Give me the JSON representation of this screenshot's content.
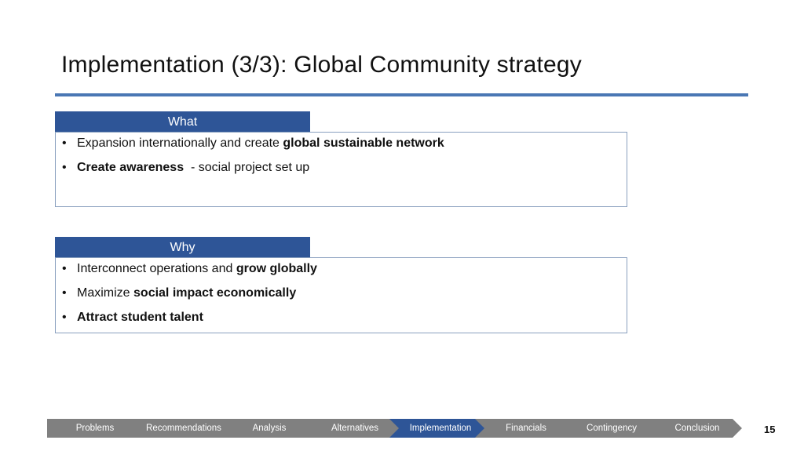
{
  "slide": {
    "title": "Implementation (3/3): Global Community strategy",
    "page_number": "15"
  },
  "sections": [
    {
      "header": "What",
      "bullets": [
        [
          {
            "t": "Expansion internationally and create ",
            "b": false
          },
          {
            "t": "global sustainable network",
            "b": true
          }
        ],
        [
          {
            "t": "Create awareness",
            "b": true
          },
          {
            "t": "  - social project set up",
            "b": false
          }
        ]
      ]
    },
    {
      "header": "Why",
      "bullets": [
        [
          {
            "t": "Interconnect operations and ",
            "b": false
          },
          {
            "t": "grow globally",
            "b": true
          }
        ],
        [
          {
            "t": "Maximize ",
            "b": false
          },
          {
            "t": "social impact economically",
            "b": true
          }
        ],
        [
          {
            "t": "Attract student talent",
            "b": true
          }
        ]
      ]
    }
  ],
  "nav": {
    "steps": [
      "Problems",
      "Recommendations",
      "Analysis",
      "Alternatives",
      "Implementation",
      "Financials",
      "Contingency",
      "Conclusion"
    ],
    "active_index": 4,
    "colors": {
      "inactive": "#808080",
      "active": "#2e5597"
    }
  }
}
